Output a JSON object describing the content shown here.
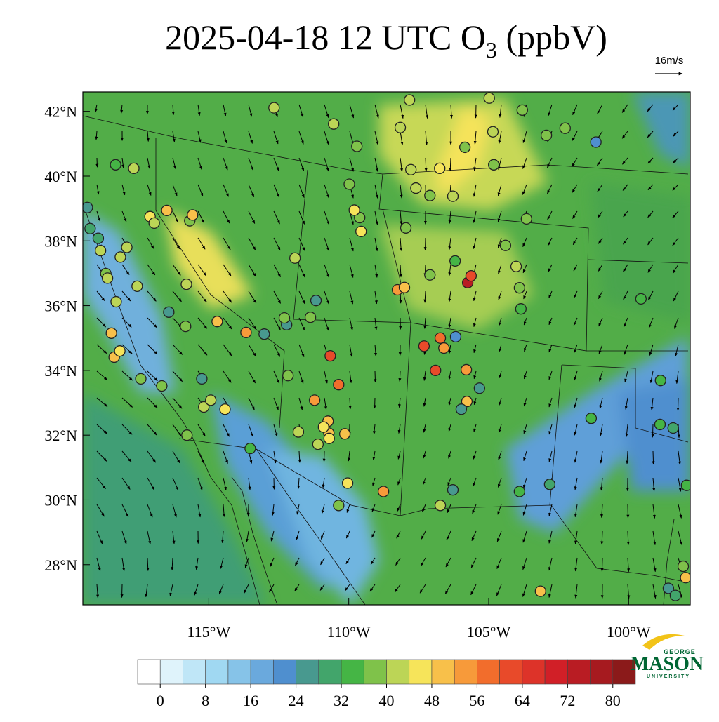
{
  "map_data": {
    "type": "station-map",
    "title_parts": [
      "2025-04-18 12 UTC O",
      "3",
      " (ppbV)"
    ],
    "reference_vector": "16m/s",
    "logo": [
      "GEORGE",
      "MASON",
      "UNIVERSITY"
    ],
    "xlim": [
      -119.5,
      -97.8
    ],
    "ylim": [
      26.76,
      42.6
    ],
    "xticks": [
      {
        "value": -115,
        "label": "115°W"
      },
      {
        "value": -110,
        "label": "110°W"
      },
      {
        "value": -105,
        "label": "105°W"
      },
      {
        "value": -100,
        "label": "100°W"
      }
    ],
    "yticks": [
      {
        "value": 42,
        "label": "42°N"
      },
      {
        "value": 40,
        "label": "40°N"
      },
      {
        "value": 38,
        "label": "38°N"
      },
      {
        "value": 36,
        "label": "36°N"
      },
      {
        "value": 34,
        "label": "34°N"
      },
      {
        "value": 32,
        "label": "32°N"
      },
      {
        "value": 30,
        "label": "30°N"
      },
      {
        "value": 28,
        "label": "28°N"
      }
    ],
    "colorbar": {
      "range": [
        -4,
        84
      ],
      "ticks": [
        0,
        8,
        16,
        24,
        32,
        40,
        48,
        56,
        64,
        72,
        80
      ],
      "colors": [
        "#ffffff",
        "#dff3fb",
        "#bfe6f7",
        "#a0d8f2",
        "#86c3e8",
        "#6aa9dd",
        "#4f8fcf",
        "#48998f",
        "#42a56b",
        "#45b545",
        "#7fc24a",
        "#bcd556",
        "#f6e45a",
        "#f8c04a",
        "#f79a3a",
        "#f26d2c",
        "#e84a2a",
        "#dd3329",
        "#d11f27",
        "#b91c23",
        "#a61a1f",
        "#8b1a1a"
      ]
    },
    "stations": {
      "lon": [
        -105.75,
        -105.63,
        -110.66,
        -107.31,
        -106.9,
        -110.36,
        -108.26,
        -108.01,
        -106.6,
        -106.73,
        -105.8,
        -108.76,
        -103.15,
        -113.67,
        -111.22,
        -118.48,
        -118.38,
        -114.7,
        -116.5,
        -110.74,
        -110.71,
        -110.14,
        -105.78,
        -97.96,
        -109.71,
        -103.8,
        -103.65,
        -104.98,
        -107.83,
        -108.16,
        -110.54,
        -112.67,
        -117.68,
        -118.33,
        -119.34,
        -119.24,
        -118.95,
        -118.68,
        -118.31,
        -116.43,
        -111.17,
        -112.22,
        -113.02,
        -111.37,
        -112.17,
        -113.52,
        -115.78,
        -115.18,
        -114.93,
        -114.42,
        -117.43,
        -116.68,
        -115.25,
        -115.83,
        -115.8,
        -115.68,
        -111.92,
        -109.61,
        -109.56,
        -107.96,
        -107.78,
        -107.6,
        -106.75,
        -106.28,
        -105.85,
        -104.85,
        -104.82,
        -102.94,
        -102.27,
        -101.17,
        -104.4,
        -104.02,
        -103.9,
        -103.85,
        -99.56,
        -98.86,
        -98.88,
        -98.41,
        -101.34,
        -102.82,
        -103.9,
        -106.73,
        -106.28,
        -105.98,
        -105.33,
        -106.18,
        -106.2,
        -107.1,
        -110.36,
        -110.04,
        -110.7,
        -111.8,
        -115.58,
        -117.93,
        -118.16,
        -117.56,
        -118.18,
        -98.58,
        -98.33,
        -97.93,
        -98.05,
        -118.87,
        -118.62,
        -117.1,
        -116.95,
        -112.3,
        -109.98,
        -109.8,
        -107.1,
        -110.9,
        -111.1
      ],
      "lat": [
        36.71,
        36.92,
        34.45,
        34.75,
        34.0,
        33.56,
        36.49,
        36.56,
        34.69,
        35.0,
        34.02,
        30.26,
        27.18,
        35.17,
        33.08,
        35.15,
        34.41,
        35.51,
        38.94,
        32.43,
        32.06,
        32.04,
        33.04,
        27.6,
        40.92,
        42.04,
        38.68,
        42.41,
        42.35,
        41.5,
        41.61,
        42.11,
        40.24,
        40.35,
        39.03,
        38.38,
        38.08,
        36.99,
        36.12,
        35.8,
        36.16,
        35.41,
        35.12,
        35.64,
        33.84,
        31.59,
        32.0,
        32.87,
        33.08,
        32.8,
        33.74,
        33.52,
        33.74,
        35.36,
        36.66,
        38.62,
        37.47,
        38.72,
        38.29,
        38.4,
        40.2,
        39.63,
        40.24,
        39.38,
        40.89,
        41.37,
        40.35,
        41.26,
        41.48,
        41.05,
        37.86,
        37.21,
        36.55,
        35.9,
        36.21,
        33.69,
        32.33,
        32.22,
        32.52,
        30.48,
        30.26,
        29.83,
        30.31,
        32.8,
        33.45,
        35.04,
        37.38,
        36.95,
        29.83,
        30.52,
        31.9,
        32.1,
        38.8,
        37.8,
        37.5,
        36.6,
        34.6,
        27.27,
        27.05,
        30.45,
        27.95,
        37.7,
        36.85,
        38.75,
        38.55,
        35.62,
        39.75,
        38.95,
        39.4,
        32.25,
        31.72
      ],
      "values": [
        74,
        62,
        62,
        60,
        60,
        56,
        54,
        50,
        54,
        56,
        52,
        52,
        48,
        54,
        54,
        48,
        48,
        48,
        48,
        48,
        50,
        48,
        48,
        48,
        36,
        36,
        36,
        40,
        40,
        40,
        42,
        40,
        42,
        34,
        24,
        28,
        30,
        36,
        40,
        24,
        24,
        24,
        26,
        38,
        36,
        34,
        38,
        40,
        42,
        44,
        38,
        36,
        26,
        36,
        40,
        36,
        40,
        38,
        44,
        38,
        40,
        42,
        44,
        40,
        36,
        40,
        38,
        36,
        36,
        20,
        36,
        42,
        36,
        32,
        34,
        32,
        32,
        30,
        32,
        28,
        34,
        40,
        26,
        26,
        24,
        22,
        34,
        38,
        38,
        44,
        46,
        40,
        48,
        40,
        40,
        40,
        44,
        26,
        28,
        34,
        36,
        40,
        40,
        44,
        42,
        38,
        36,
        44,
        38,
        46,
        42
      ]
    }
  }
}
